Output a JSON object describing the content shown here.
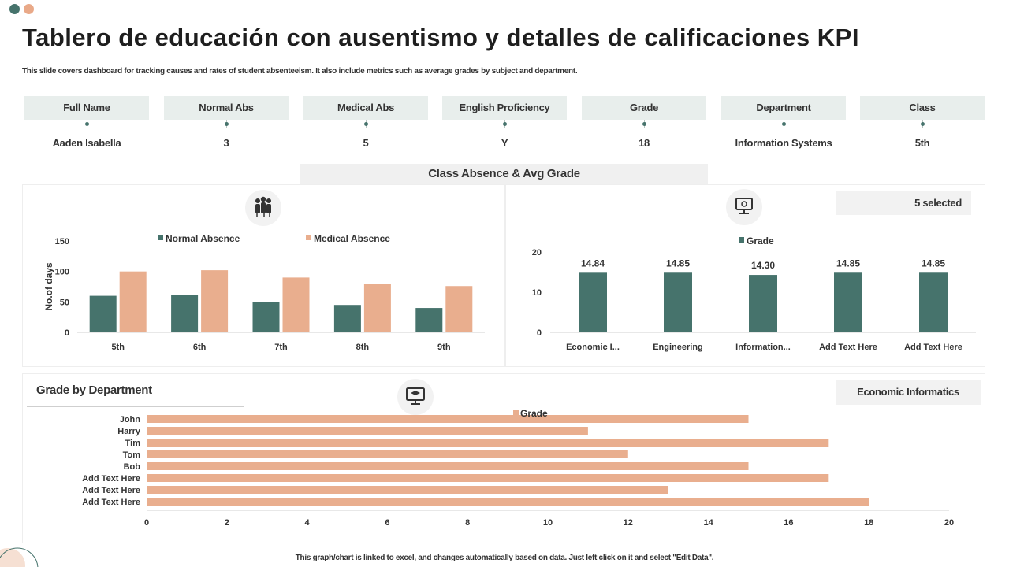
{
  "header": {
    "title": "Tablero de educación con ausentismo y detalles de calificaciones KPI",
    "subtitle": "This slide covers dashboard for tracking causes and rates of student absenteeism. It also include metrics such as average grades by subject and department."
  },
  "kpis": [
    {
      "label": "Full Name",
      "value": "Aaden Isabella"
    },
    {
      "label": "Normal Abs",
      "value": "3"
    },
    {
      "label": "Medical Abs",
      "value": "5"
    },
    {
      "label": "English Proficiency",
      "value": "Y"
    },
    {
      "label": "Grade",
      "value": "18"
    },
    {
      "label": "Department",
      "value": "Information Systems"
    },
    {
      "label": "Class",
      "value": "5th"
    }
  ],
  "section": {
    "title": "Class Absence &  Avg Grade"
  },
  "selection": {
    "label": "5 selected"
  },
  "grade_panel": {
    "title": "Grade by Department",
    "department": "Economic Informatics"
  },
  "footer": {
    "text": "This graph/chart is linked to excel, and changes automatically based on data. Just left click on it and select \"Edit Data\"."
  },
  "colors": {
    "teal": "#46736c",
    "peach": "#e9ae8e"
  },
  "icons": {
    "absence": "people-group-icon",
    "grade": "monitor-gear-icon",
    "dept": "graduation-monitor-icon"
  },
  "chart_data": [
    {
      "type": "bar",
      "categories": [
        "5th",
        "6th",
        "7th",
        "8th",
        "9th"
      ],
      "series": [
        {
          "name": "Normal Absence",
          "values": [
            60,
            62,
            50,
            45,
            40
          ],
          "color": "#46736c"
        },
        {
          "name": "Medical Absence",
          "values": [
            100,
            102,
            90,
            80,
            76
          ],
          "color": "#e9ae8e"
        }
      ],
      "ylabel": "No.of days",
      "ylim": [
        0,
        150
      ],
      "yticks": [
        "0",
        "50",
        "100",
        "150"
      ],
      "legend": "top"
    },
    {
      "type": "bar",
      "categories": [
        "Economic I...",
        "Engineering",
        "Information...",
        "Add Text Here",
        "Add Text Here"
      ],
      "series": [
        {
          "name": "Grade",
          "values": [
            14.84,
            14.85,
            14.3,
            14.85,
            14.85
          ],
          "color": "#46736c"
        }
      ],
      "data_labels": [
        "14.84",
        "14.85",
        "14.30",
        "14.85",
        "14.85"
      ],
      "ylim": [
        0,
        20
      ],
      "yticks": [
        "0",
        "10",
        "20"
      ],
      "legend": "top"
    },
    {
      "type": "bar",
      "orientation": "horizontal",
      "categories": [
        "John",
        "Harry",
        "Tim",
        "Tom",
        "Bob",
        "Add Text Here",
        "Add Text Here",
        "Add Text Here"
      ],
      "series": [
        {
          "name": "Grade",
          "values": [
            15,
            11,
            17,
            12,
            15,
            17,
            13,
            18
          ],
          "color": "#e9ae8e"
        }
      ],
      "xlim": [
        0,
        20
      ],
      "xticks": [
        "0",
        "2",
        "4",
        "6",
        "8",
        "10",
        "12",
        "14",
        "16",
        "18",
        "20"
      ],
      "legend": "top"
    }
  ]
}
